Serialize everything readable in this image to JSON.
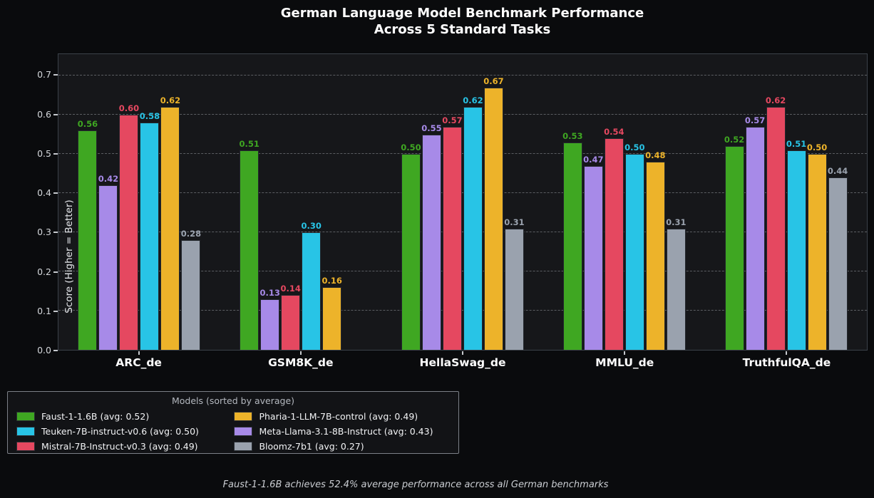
{
  "title": {
    "line1": "German Language Model Benchmark Performance",
    "line2": "Across 5 Standard Tasks"
  },
  "y_axis": {
    "label": "Score (Higher = Better)",
    "ticks": [
      "0.0",
      "0.1",
      "0.2",
      "0.3",
      "0.4",
      "0.5",
      "0.6",
      "0.7"
    ],
    "plot_max": 0.755
  },
  "chart_data": {
    "type": "bar",
    "title": "German Language Model Benchmark Performance Across 5 Standard Tasks",
    "xlabel": "",
    "ylabel": "Score (Higher = Better)",
    "ylim": [
      0,
      0.75
    ],
    "grid": true,
    "gridline_values": [
      0.1,
      0.2,
      0.3,
      0.4,
      0.5,
      0.6,
      0.7
    ],
    "legend_position": "bottom-left",
    "value_label_format": "2 decimals, zero values have no bar and no label",
    "categories": [
      "ARC_de",
      "GSM8K_de",
      "HellaSwag_de",
      "MMLU_de",
      "TruthfulQA_de"
    ],
    "series": [
      {
        "name": "Faust-1-1.6B",
        "color": "#3FA722",
        "avg": 0.52,
        "values": [
          0.56,
          0.51,
          0.5,
          0.53,
          0.52
        ]
      },
      {
        "name": "Meta-Llama-3.1-8B-Instruct",
        "color": "#A78AE8",
        "avg": 0.43,
        "values": [
          0.42,
          0.13,
          0.55,
          0.47,
          0.57
        ]
      },
      {
        "name": "Mistral-7B-Instruct-v0.3",
        "color": "#E54860",
        "avg": 0.49,
        "values": [
          0.6,
          0.14,
          0.57,
          0.54,
          0.62
        ]
      },
      {
        "name": "Teuken-7B-instruct-v0.6",
        "color": "#28C4E6",
        "avg": 0.5,
        "values": [
          0.58,
          0.3,
          0.62,
          0.5,
          0.51
        ]
      },
      {
        "name": "Pharia-1-LLM-7B-control",
        "color": "#EDB32A",
        "avg": 0.49,
        "values": [
          0.62,
          0.16,
          0.67,
          0.48,
          0.5
        ]
      },
      {
        "name": "Bloomz-7b1",
        "color": "#9AA2AE",
        "avg": 0.27,
        "values": [
          0.28,
          0.0,
          0.31,
          0.31,
          0.44
        ]
      }
    ]
  },
  "legend": {
    "title": "Models (sorted by average)",
    "entries": [
      {
        "label": "Faust-1-1.6B (avg: 0.52)",
        "color": "#3FA722"
      },
      {
        "label": "Teuken-7B-instruct-v0.6 (avg: 0.50)",
        "color": "#28C4E6"
      },
      {
        "label": "Mistral-7B-Instruct-v0.3 (avg: 0.49)",
        "color": "#E54860"
      },
      {
        "label": "Pharia-1-LLM-7B-control (avg: 0.49)",
        "color": "#EDB32A"
      },
      {
        "label": "Meta-Llama-3.1-8B-Instruct (avg: 0.43)",
        "color": "#A78AE8"
      },
      {
        "label": "Bloomz-7b1 (avg: 0.27)",
        "color": "#9AA2AE"
      }
    ]
  },
  "footer": {
    "caption": "Faust-1-1.6B achieves 52.4% average performance across all German benchmarks"
  }
}
